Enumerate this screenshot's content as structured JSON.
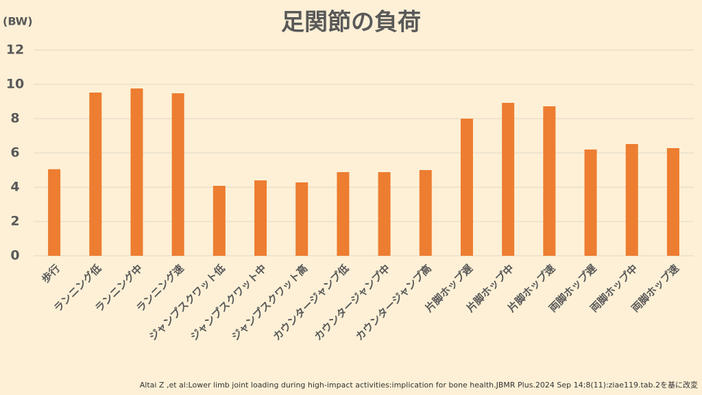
{
  "chart_data": {
    "type": "bar",
    "title": "足関節の負荷",
    "y_label": "(BW)",
    "categories": [
      "歩行",
      "ランニング低",
      "ランニング中",
      "ランニング速",
      "ジャンプスクワット低",
      "ジャンプスクワット中",
      "ジャンプスクワット高",
      "カウンタージャンプ低",
      "カウンタージャンプ中",
      "カウンタージャンプ高",
      "片脚ホップ遅",
      "片脚ホップ中",
      "片脚ホップ速",
      "両脚ホップ遅",
      "両脚ホップ中",
      "両脚ホップ速"
    ],
    "values": [
      5.05,
      9.52,
      9.76,
      9.48,
      4.08,
      4.4,
      4.28,
      4.88,
      4.88,
      5.0,
      8.0,
      8.92,
      8.72,
      6.2,
      6.52,
      6.28
    ],
    "color": "#ed7d31",
    "ylim": [
      0,
      12
    ],
    "yticks": [
      0,
      2,
      4,
      6,
      8,
      10,
      12
    ],
    "grid": true,
    "source": "Altai Z ,et al:Lower limb joint loading during high-impact activities:implication for bone health.JBMR Plus.2024 Sep 14;8(11):ziae119.tab.2を基に改変"
  }
}
